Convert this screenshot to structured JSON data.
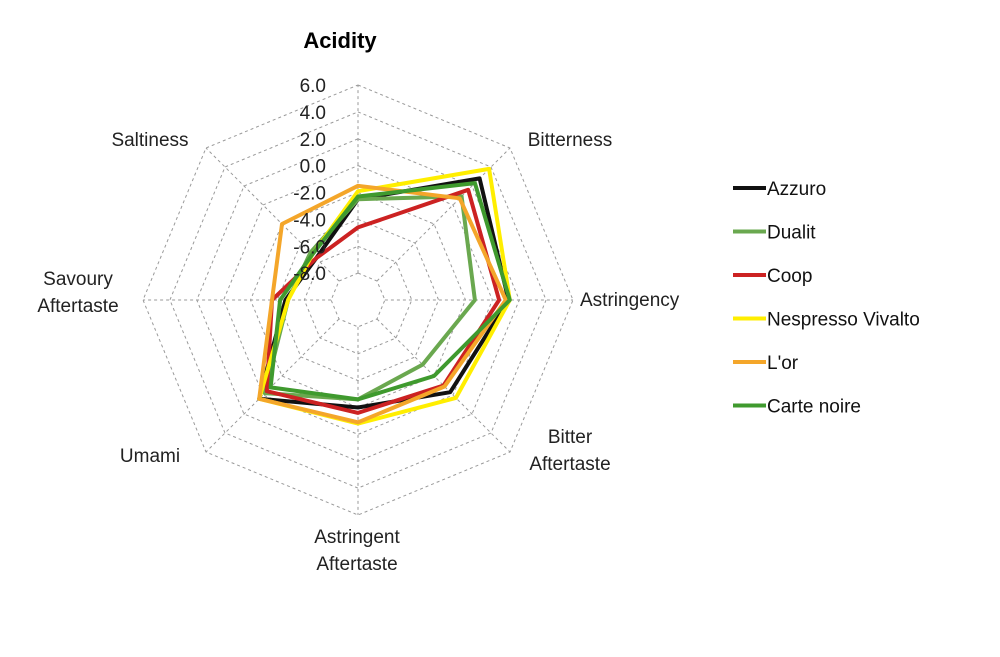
{
  "chart_data": {
    "type": "radar",
    "axes": [
      "Acidity",
      "Bitterness",
      "Astringency",
      "Bitter Aftertaste",
      "Astringent Aftertaste",
      "Umami",
      "Savoury Aftertaste",
      "Saltiness"
    ],
    "axis_label_lines": [
      [
        "Acidity"
      ],
      [
        "Bitterness"
      ],
      [
        "Astringency"
      ],
      [
        "Bitter",
        "Aftertaste"
      ],
      [
        "Astringent",
        "Aftertaste"
      ],
      [
        "Umami"
      ],
      [
        "Savoury",
        "Aftertaste"
      ],
      [
        "Saltiness"
      ]
    ],
    "ticks": [
      "-8.0",
      "-6.0",
      "-4.0",
      "-2.0",
      "0.0",
      "2.0",
      "4.0",
      "6.0"
    ],
    "range": [
      -10,
      6
    ],
    "grid": true,
    "legend_position": "right",
    "series": [
      {
        "name": "Azzuro",
        "color": "#111111",
        "values": [
          -2.5,
          2.8,
          1.2,
          -0.3,
          -2.0,
          0.4,
          -4.6,
          -5.6
        ]
      },
      {
        "name": "Dualit",
        "color": "#6aa84f",
        "values": [
          -2.5,
          0.9,
          -1.3,
          -3.2,
          -2.6,
          -0.2,
          -4.8,
          -5.0
        ]
      },
      {
        "name": "Coop",
        "color": "#cc2222",
        "values": [
          -4.6,
          1.6,
          0.5,
          -1.0,
          -1.6,
          -0.4,
          -3.6,
          -5.6
        ]
      },
      {
        "name": "Nespresso Vivalto",
        "color": "#ffee00",
        "values": [
          -1.9,
          3.8,
          1.3,
          0.3,
          -0.8,
          0.4,
          -4.8,
          -5.2
        ]
      },
      {
        "name": "L'or",
        "color": "#f4a62a",
        "values": [
          -1.5,
          0.7,
          1.0,
          -0.9,
          -0.9,
          0.4,
          -3.6,
          -2.0
        ]
      },
      {
        "name": "Carte noire",
        "color": "#3f9a2e",
        "values": [
          -2.3,
          2.3,
          1.3,
          -2.0,
          -2.6,
          -0.8,
          -4.2,
          -5.2
        ]
      }
    ]
  }
}
